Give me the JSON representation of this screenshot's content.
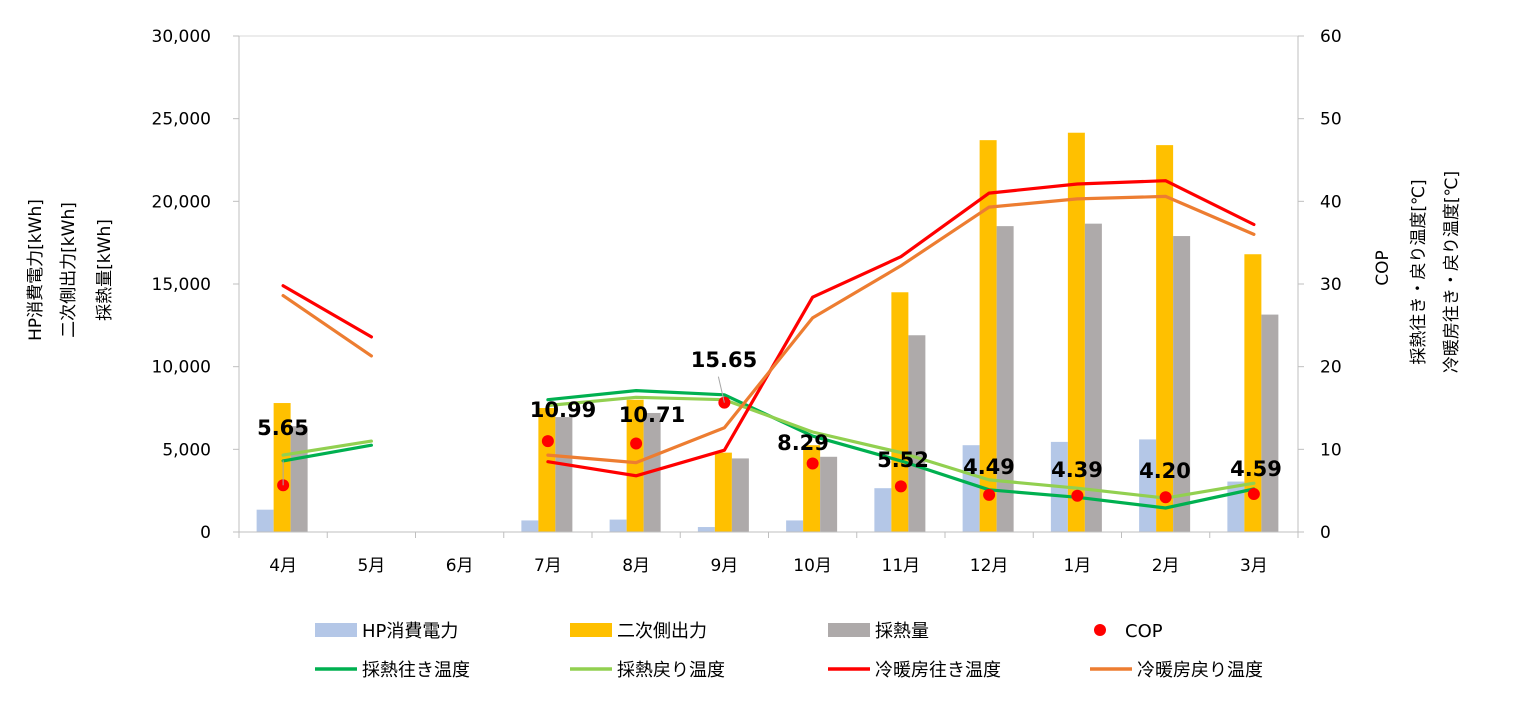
{
  "chart_data": {
    "type": "bar",
    "categories": [
      "4月",
      "5月",
      "6月",
      "7月",
      "8月",
      "9月",
      "10月",
      "11月",
      "12月",
      "1月",
      "2月",
      "3月"
    ],
    "y_left": {
      "labels": [
        "HP消費電力[kWh]",
        "二次側出力[kWh]",
        "採熱量[kWh]"
      ],
      "range": [
        0,
        30000
      ],
      "ticks": [
        "0",
        "5,000",
        "10,000",
        "15,000",
        "20,000",
        "25,000",
        "30,000"
      ]
    },
    "y_right": {
      "labels": [
        "COP",
        "採熱往き・戻り温度[℃]",
        "冷暖房往き・戻り温度[℃]"
      ],
      "range": [
        0,
        60
      ],
      "ticks": [
        "0",
        "10",
        "20",
        "30",
        "40",
        "50",
        "60"
      ]
    },
    "bar_series": [
      {
        "name": "HP消費電力",
        "color": "#b4c7e7",
        "axis": "left",
        "values": [
          1350,
          null,
          null,
          700,
          750,
          300,
          700,
          2650,
          5250,
          5450,
          5600,
          3050
        ]
      },
      {
        "name": "二次側出力",
        "color": "#ffc000",
        "axis": "left",
        "values": [
          7800,
          null,
          null,
          7500,
          8000,
          4800,
          5250,
          14500,
          23700,
          24150,
          23400,
          16800
        ]
      },
      {
        "name": "採熱量",
        "color": "#aeaaaa",
        "axis": "left",
        "values": [
          6400,
          null,
          null,
          6950,
          7200,
          4450,
          4550,
          11900,
          18500,
          18650,
          17900,
          13150
        ]
      }
    ],
    "cop_series": {
      "name": "COP",
      "color": "#ff0000",
      "axis": "right",
      "values": [
        5.65,
        null,
        null,
        10.99,
        10.71,
        15.65,
        8.29,
        5.52,
        4.49,
        4.39,
        4.2,
        4.59
      ],
      "labels": [
        "5.65",
        "",
        "",
        "10.99",
        "10.71",
        "15.65",
        "8.29",
        "5.52",
        "4.49",
        "4.39",
        "4.20",
        "4.59"
      ]
    },
    "line_series": [
      {
        "name": "採熱往き温度",
        "color": "#00b050",
        "axis": "right",
        "values": [
          8.6,
          10.5,
          null,
          16.0,
          17.1,
          16.6,
          11.6,
          8.6,
          5.1,
          4.2,
          2.9,
          5.2
        ]
      },
      {
        "name": "採熱戻り温度",
        "color": "#92d050",
        "axis": "right",
        "values": [
          9.3,
          11.0,
          null,
          15.3,
          16.3,
          16.0,
          12.1,
          9.6,
          6.3,
          5.3,
          4.1,
          5.9
        ]
      },
      {
        "name": "冷暖房往き温度",
        "color": "#ff0000",
        "axis": "right",
        "values": [
          29.8,
          23.6,
          null,
          8.5,
          6.8,
          9.9,
          28.4,
          33.3,
          41.0,
          42.1,
          42.5,
          37.2
        ]
      },
      {
        "name": "冷暖房戻り温度",
        "color": "#ed7d31",
        "axis": "right",
        "values": [
          28.6,
          21.3,
          null,
          9.3,
          8.4,
          12.6,
          25.9,
          32.2,
          39.3,
          40.3,
          40.6,
          36.0
        ]
      }
    ],
    "legend": {
      "placement": "bottom",
      "items": [
        "HP消費電力",
        "二次側出力",
        "採熱量",
        "COP",
        "採熱往き温度",
        "採熱戻り温度",
        "冷暖房往き温度",
        "冷暖房戻り温度"
      ]
    },
    "grid": false
  }
}
